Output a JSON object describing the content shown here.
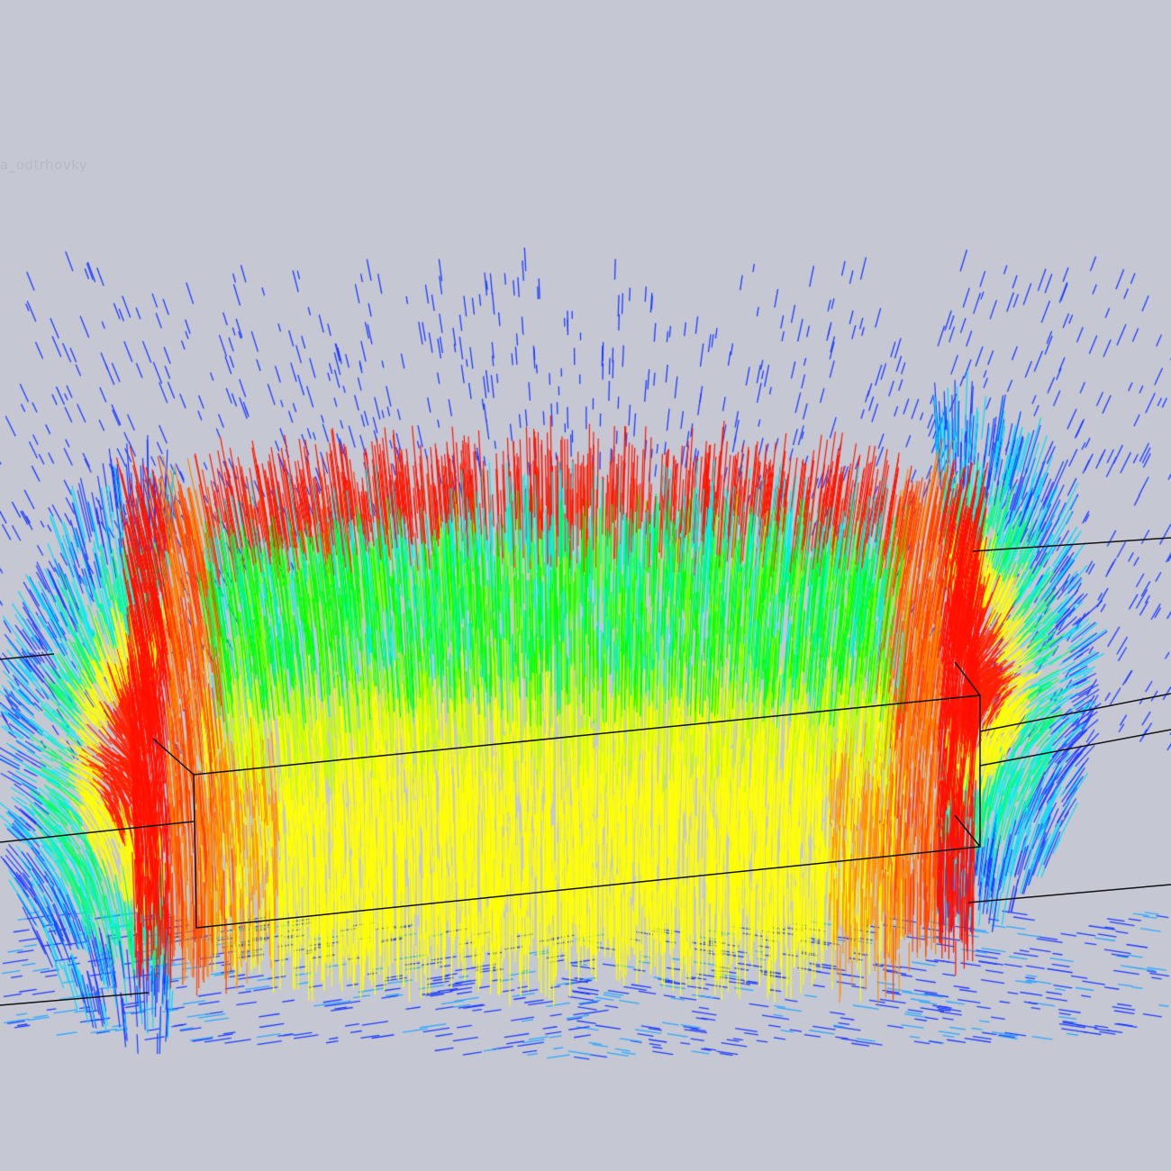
{
  "viewport": {
    "model_label": "a_odtrhovky",
    "background_color": "#c5c8d3",
    "visualization": "vector-field-arrows",
    "colormap": [
      "#1e3cff",
      "#00e5ff",
      "#00ff00",
      "#ffff00",
      "#ff8000",
      "#ff0000"
    ],
    "wireframe_color": "#111111"
  }
}
